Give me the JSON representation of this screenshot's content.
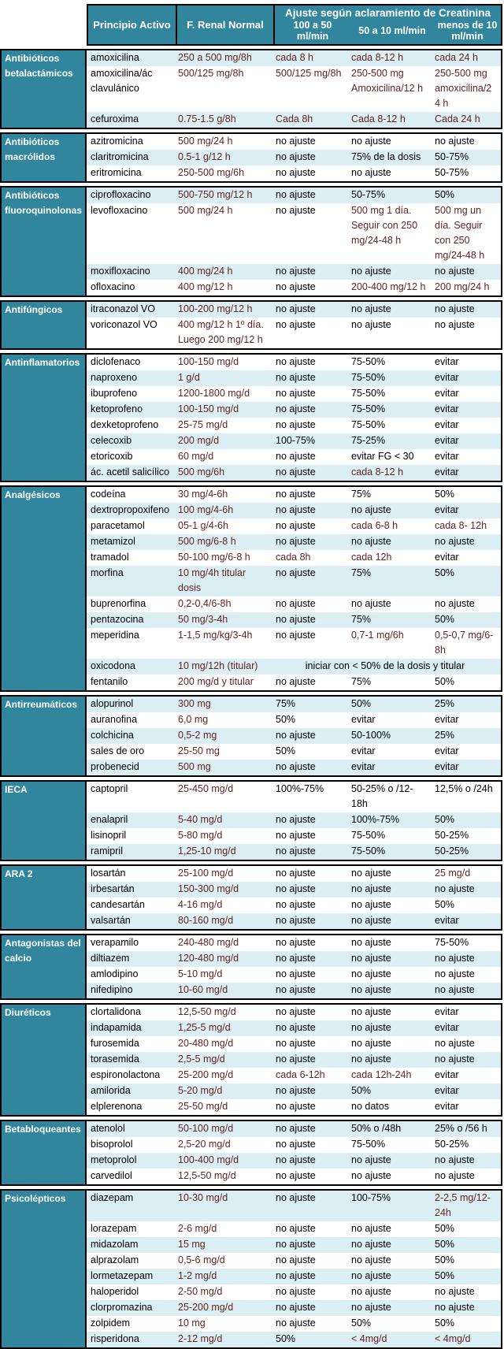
{
  "header": {
    "principio": "Principio Activo",
    "renal": "F. Renal Normal",
    "ajuste_group": "Ajuste según aclaramiento de Creatinina",
    "sub_columns": [
      "100 a 50 ml/min",
      "50 a 10 ml/min",
      "menos de 10 ml/min"
    ]
  },
  "colors": {
    "teal_header": "#31859C",
    "row_shade": "#DAEEF3",
    "dose_text": "#632423",
    "body_text": "#000000"
  },
  "sections": [
    {
      "category": "Antibióticos betalactámicos",
      "rows": [
        {
          "drug": "amoxicilina",
          "normal": "250 a 500 mg/8h",
          "c1": "cada 8 h",
          "c2": "cada 8-12 h",
          "c3": "cada 24 h",
          "shade": true
        },
        {
          "drug": "amoxicilina/ác clavulánico",
          "normal": "500/125 mg/8h",
          "c1": "500/125 mg/8h",
          "c2": "250-500 mg Amoxicilina/12 h",
          "c3": "250-500 mg amoxicilina/24 h",
          "shade": false,
          "tall": true
        },
        {
          "drug": "cefuroxima",
          "normal": "0.75-1.5 g/8h",
          "c1": "Cada 8h",
          "c2": "Cada 8-12 h",
          "c3": "Cada 24 h",
          "shade": true
        }
      ]
    },
    {
      "category": "Antibióticos macrólidos",
      "rows": [
        {
          "drug": "azitromicina",
          "normal": "500 mg/24 h",
          "c1": "no ajuste",
          "c2": "no ajuste",
          "c3": "no ajuste",
          "shade": false
        },
        {
          "drug": "claritromicina",
          "normal": "0.5-1 g/12 h",
          "c1": "no ajuste",
          "c2": "75% de la dosis",
          "c3": "50-75%",
          "shade": true
        },
        {
          "drug": "eritromicina",
          "normal": "250-500 mg/6h",
          "c1": "no ajuste",
          "c2": "no ajuste",
          "c3": "50-75%",
          "shade": false
        }
      ]
    },
    {
      "category": "Antibióticos fluoroquinolonas",
      "rows": [
        {
          "drug": "ciprofloxacino",
          "normal": "500-750 mg/12 h",
          "c1": "no ajuste",
          "c2": "50-75%",
          "c3": "50%",
          "shade": true
        },
        {
          "drug": "levofloxacino",
          "normal": "500 mg/24 h",
          "c1": "no ajuste",
          "c2": "500 mg 1 día. Seguir con 250 mg/24-48 h",
          "c3": "500 mg un día. Seguir con 250 mg/24-48 h",
          "shade": false
        },
        {
          "drug": "moxifloxacino",
          "normal": "400 mg/24 h",
          "c1": "no ajuste",
          "c2": "no ajuste",
          "c3": "no ajuste",
          "shade": true
        },
        {
          "drug": "ofloxacino",
          "normal": "400 mg/12 h",
          "c1": "no ajuste",
          "c2": "200-400 mg/12 h",
          "c3": "200 mg/24 h",
          "shade": false
        }
      ]
    },
    {
      "category": "Antifúngicos",
      "rows": [
        {
          "drug": "itraconazol VO",
          "normal": "100-200 mg/12 h",
          "c1": "no ajuste",
          "c2": "no ajuste",
          "c3": "no ajuste",
          "shade": true
        },
        {
          "drug": "voriconazol VO",
          "normal": "400 mg/12 h 1º día. Luego 200 mg/12 h",
          "c1": "no ajuste",
          "c2": "no ajuste",
          "c3": "no ajuste",
          "shade": false
        }
      ]
    },
    {
      "category": "Antinflamatorios",
      "rows": [
        {
          "drug": "diclofenaco",
          "normal": "100-150 mg/d",
          "c1": "no ajuste",
          "c2": "75-50%",
          "c3": "evitar",
          "shade": false
        },
        {
          "drug": "naproxeno",
          "normal": "1 g/d",
          "c1": "no ajuste",
          "c2": "75-50%",
          "c3": "evitar",
          "shade": true
        },
        {
          "drug": "ibuprofeno",
          "normal": "1200-1800 mg/d",
          "c1": "no ajuste",
          "c2": "75-50%",
          "c3": "evitar",
          "shade": false
        },
        {
          "drug": "ketoprofeno",
          "normal": "100-150 mg/d",
          "c1": "no ajuste",
          "c2": "75-50%",
          "c3": "evitar",
          "shade": true
        },
        {
          "drug": "dexketoprofeno",
          "normal": "25-75 mg/d",
          "c1": "no ajuste",
          "c2": "75-50%",
          "c3": "evitar",
          "shade": false
        },
        {
          "drug": "celecoxib",
          "normal": "200 mg/d",
          "c1": "100-75%",
          "c2": "75-25%",
          "c3": "evitar",
          "shade": true
        },
        {
          "drug": "etoricoxib",
          "normal": "60 mg/d",
          "c1": "no ajuste",
          "c2": "evitar FG < 30",
          "c3": "evitar",
          "shade": false
        },
        {
          "drug": "ác. acetil salicílico",
          "normal": "500 mg/6h",
          "c1": "no ajuste",
          "c2": "cada 8-12 h",
          "c3": "evitar",
          "shade": true
        }
      ]
    },
    {
      "category": "Analgésicos",
      "rows": [
        {
          "drug": "codeína",
          "normal": "30 mg/4-6h",
          "c1": "no ajuste",
          "c2": "75%",
          "c3": "50%",
          "shade": false
        },
        {
          "drug": "dextropropoxifeno",
          "normal": "100 mg/4-6h",
          "c1": "no ajuste",
          "c2": "no ajuste",
          "c3": "evitar",
          "shade": true
        },
        {
          "drug": "paracetamol",
          "normal": "05-1 g/4-6h",
          "c1": "no ajuste",
          "c2": "cada 6-8 h",
          "c3": "cada 8- 12h",
          "shade": false
        },
        {
          "drug": "metamizol",
          "normal": "500 mg/6-8 h",
          "c1": "no ajuste",
          "c2": "no ajuste",
          "c3": "no ajuste",
          "shade": true
        },
        {
          "drug": "tramadol",
          "normal": "50-100 mg/6-8 h",
          "c1": "cada 8h",
          "c2": "cada 12h",
          "c3": "evitar",
          "shade": false
        },
        {
          "drug": "morfina",
          "normal": "10 mg/4h titular dosis",
          "c1": "no ajuste",
          "c2": "75%",
          "c3": "50%",
          "shade": true
        },
        {
          "drug": "buprenorfina",
          "normal": "0,2-0,4/6-8h",
          "c1": "no ajuste",
          "c2": "no ajuste",
          "c3": "no ajuste",
          "shade": false
        },
        {
          "drug": "pentazocina",
          "normal": "50 mg/3-4h",
          "c1": "no ajuste",
          "c2": "75%",
          "c3": "50%",
          "shade": true
        },
        {
          "drug": "meperidina",
          "normal": "1-1,5 mg/kg/3-4h",
          "c1": "no ajuste",
          "c2": "0,7-1 mg/6h",
          "c3": "0,5-0,7 mg/6-8h",
          "shade": false
        },
        {
          "drug": "oxicodona",
          "normal": "10 mg/12h (titular)",
          "merged": "iniciar con < 50% de la dosis y titular",
          "shade": true
        },
        {
          "drug": "fentanilo",
          "normal": "200 mg/d y titular",
          "c1": "no ajuste",
          "c2": "75%",
          "c3": "50%",
          "shade": false
        }
      ]
    },
    {
      "category": "Antirreumáticos",
      "rows": [
        {
          "drug": "alopurinol",
          "normal": "300 mg",
          "c1": "75%",
          "c2": "50%",
          "c3": "25%",
          "shade": true
        },
        {
          "drug": "auranofina",
          "normal": "6,0 mg",
          "c1": "50%",
          "c2": "evitar",
          "c3": "evitar",
          "shade": false
        },
        {
          "drug": "colchicina",
          "normal": "0,5-2 mg",
          "c1": "no ajuste",
          "c2": "50-100%",
          "c3": "25%",
          "shade": true
        },
        {
          "drug": "sales de oro",
          "normal": "25-50 mg",
          "c1": "50%",
          "c2": "evitar",
          "c3": "evitar",
          "shade": false
        },
        {
          "drug": "probenecid",
          "normal": "500 mg",
          "c1": "no ajuste",
          "c2": "evitar",
          "c3": "evitar",
          "shade": true
        }
      ]
    },
    {
      "category": "IECA",
      "rows": [
        {
          "drug": "captopril",
          "normal": "25-450 mg/d",
          "c1": "100%-75%",
          "c2": "50-25% o /12-18h",
          "c3": "12,5% o /24h",
          "shade": false
        },
        {
          "drug": "enalapril",
          "normal": "5-40 mg/d",
          "c1": "no ajuste",
          "c2": "100%-75%",
          "c3": "50%",
          "shade": true
        },
        {
          "drug": "lisinopril",
          "normal": "5-80 mg/d",
          "c1": "no ajuste",
          "c2": "75-50%",
          "c3": "50-25%",
          "shade": false
        },
        {
          "drug": "ramipril",
          "normal": "1,25-10 mg/d",
          "c1": "no ajuste",
          "c2": "75-50%",
          "c3": "50-25%",
          "shade": true
        }
      ]
    },
    {
      "category": "ARA 2",
      "rows": [
        {
          "drug": "losartán",
          "normal": "25-100 mg/d",
          "c1": "no ajuste",
          "c2": "no ajuste",
          "c3": "25 mg/d",
          "shade": false
        },
        {
          "drug": "irbesartán",
          "normal": "150-300 mg/d",
          "c1": "no ajuste",
          "c2": "no ajuste",
          "c3": "no ajuste",
          "shade": true
        },
        {
          "drug": "candesartán",
          "normal": "4-16 mg/d",
          "c1": "no ajuste",
          "c2": "no ajuste",
          "c3": "50%",
          "shade": false
        },
        {
          "drug": "valsartán",
          "normal": "80-160 mg/d",
          "c1": "no ajuste",
          "c2": "no ajuste",
          "c3": "evitar",
          "shade": true
        }
      ]
    },
    {
      "category": "Antagonistas del calcio",
      "rows": [
        {
          "drug": "verapamilo",
          "normal": "240-480 mg/d",
          "c1": "no ajuste",
          "c2": "no ajuste",
          "c3": "75-50%",
          "shade": false
        },
        {
          "drug": "diltiazem",
          "normal": "120-480 mg/d",
          "c1": "no ajuste",
          "c2": "no ajuste",
          "c3": "no ajuste",
          "shade": true
        },
        {
          "drug": "amlodipino",
          "normal": "5-10 mg/d",
          "c1": "no ajuste",
          "c2": "no ajuste",
          "c3": "no ajuste",
          "shade": false
        },
        {
          "drug": "nifedipino",
          "normal": "10-60 mg/d",
          "c1": "no ajuste",
          "c2": "no ajuste",
          "c3": "no ajuste",
          "shade": true
        }
      ]
    },
    {
      "category": "Diuréticos",
      "rows": [
        {
          "drug": "clortalidona",
          "normal": "12,5-50 mg/d",
          "c1": "no ajuste",
          "c2": "no ajuste",
          "c3": "evitar",
          "shade": false
        },
        {
          "drug": "indapamida",
          "normal": "1,25-5 mg/d",
          "c1": "no ajuste",
          "c2": "no ajuste",
          "c3": "evitar",
          "shade": true
        },
        {
          "drug": "furosemida",
          "normal": "20-480 mg/d",
          "c1": "no ajuste",
          "c2": "no ajuste",
          "c3": "no ajuste",
          "shade": false
        },
        {
          "drug": "torasemida",
          "normal": "2,5-5 mg/d",
          "c1": "no ajuste",
          "c2": "no ajuste",
          "c3": "no ajuste",
          "shade": true
        },
        {
          "drug": "espironolactona",
          "normal": "25-200 mg/d",
          "c1": "cada 6-12h",
          "c2": "cada 12h-24h",
          "c3": "evitar",
          "shade": false
        },
        {
          "drug": "amilorida",
          "normal": "5-20 mg/d",
          "c1": "no ajuste",
          "c2": "50%",
          "c3": "evitar",
          "shade": true
        },
        {
          "drug": "elplerenona",
          "normal": "25-50 mg/d",
          "c1": "no ajuste",
          "c2": "no datos",
          "c3": "evitar",
          "shade": false
        }
      ]
    },
    {
      "category": "Betabloqueantes",
      "rows": [
        {
          "drug": "atenolol",
          "normal": "50-100 mg/d",
          "c1": "no ajuste",
          "c2": "50% o /48h",
          "c3": "25% o /56 h",
          "shade": true
        },
        {
          "drug": "bisoprolol",
          "normal": "2,5-20 mg/d",
          "c1": "no ajuste",
          "c2": "75-50%",
          "c3": "50-25%",
          "shade": false
        },
        {
          "drug": "metoprolol",
          "normal": "100-400 mg/d",
          "c1": "no ajuste",
          "c2": "no ajuste",
          "c3": "no ajuste",
          "shade": true
        },
        {
          "drug": "carvedilol",
          "normal": "12,5-50 mg/d",
          "c1": "no ajuste",
          "c2": "no ajuste",
          "c3": "no ajuste",
          "shade": false
        }
      ]
    },
    {
      "category": "Psicolépticos",
      "rows": [
        {
          "drug": "diazepam",
          "normal": "10-30 mg/d",
          "c1": "no ajuste",
          "c2": "100-75%",
          "c3": "2-2,5 mg/12-24h",
          "shade": true
        },
        {
          "drug": "lorazepam",
          "normal": "2-6 mg/d",
          "c1": "no ajuste",
          "c2": "no ajuste",
          "c3": "50%",
          "shade": false
        },
        {
          "drug": "midazolam",
          "normal": "15 mg",
          "c1": "no ajuste",
          "c2": "no ajuste",
          "c3": "50%",
          "shade": true
        },
        {
          "drug": "alprazolam",
          "normal": "0,5-6 mg/d",
          "c1": "no ajuste",
          "c2": "no ajuste",
          "c3": "50%",
          "shade": false
        },
        {
          "drug": "lormetazepam",
          "normal": "1-2 mg/d",
          "c1": "no ajuste",
          "c2": "no ajuste",
          "c3": "50%",
          "shade": true
        },
        {
          "drug": "haloperidol",
          "normal": "2-50 mg/d",
          "c1": "no ajuste",
          "c2": "no ajuste",
          "c3": "no ajuste",
          "shade": false
        },
        {
          "drug": "clorpromazina",
          "normal": "25-200 mg/d",
          "c1": "no ajuste",
          "c2": "no ajuste",
          "c3": "no ajuste",
          "shade": true
        },
        {
          "drug": "zolpidem",
          "normal": "10 mg",
          "c1": "no ajuste",
          "c2": "50%",
          "c3": "50%",
          "shade": false
        },
        {
          "drug": "risperidona",
          "normal": "2-12 mg/d",
          "c1": "50%",
          "c2": "< 4mg/d",
          "c3": "< 4mg/d",
          "shade": true
        }
      ]
    }
  ]
}
